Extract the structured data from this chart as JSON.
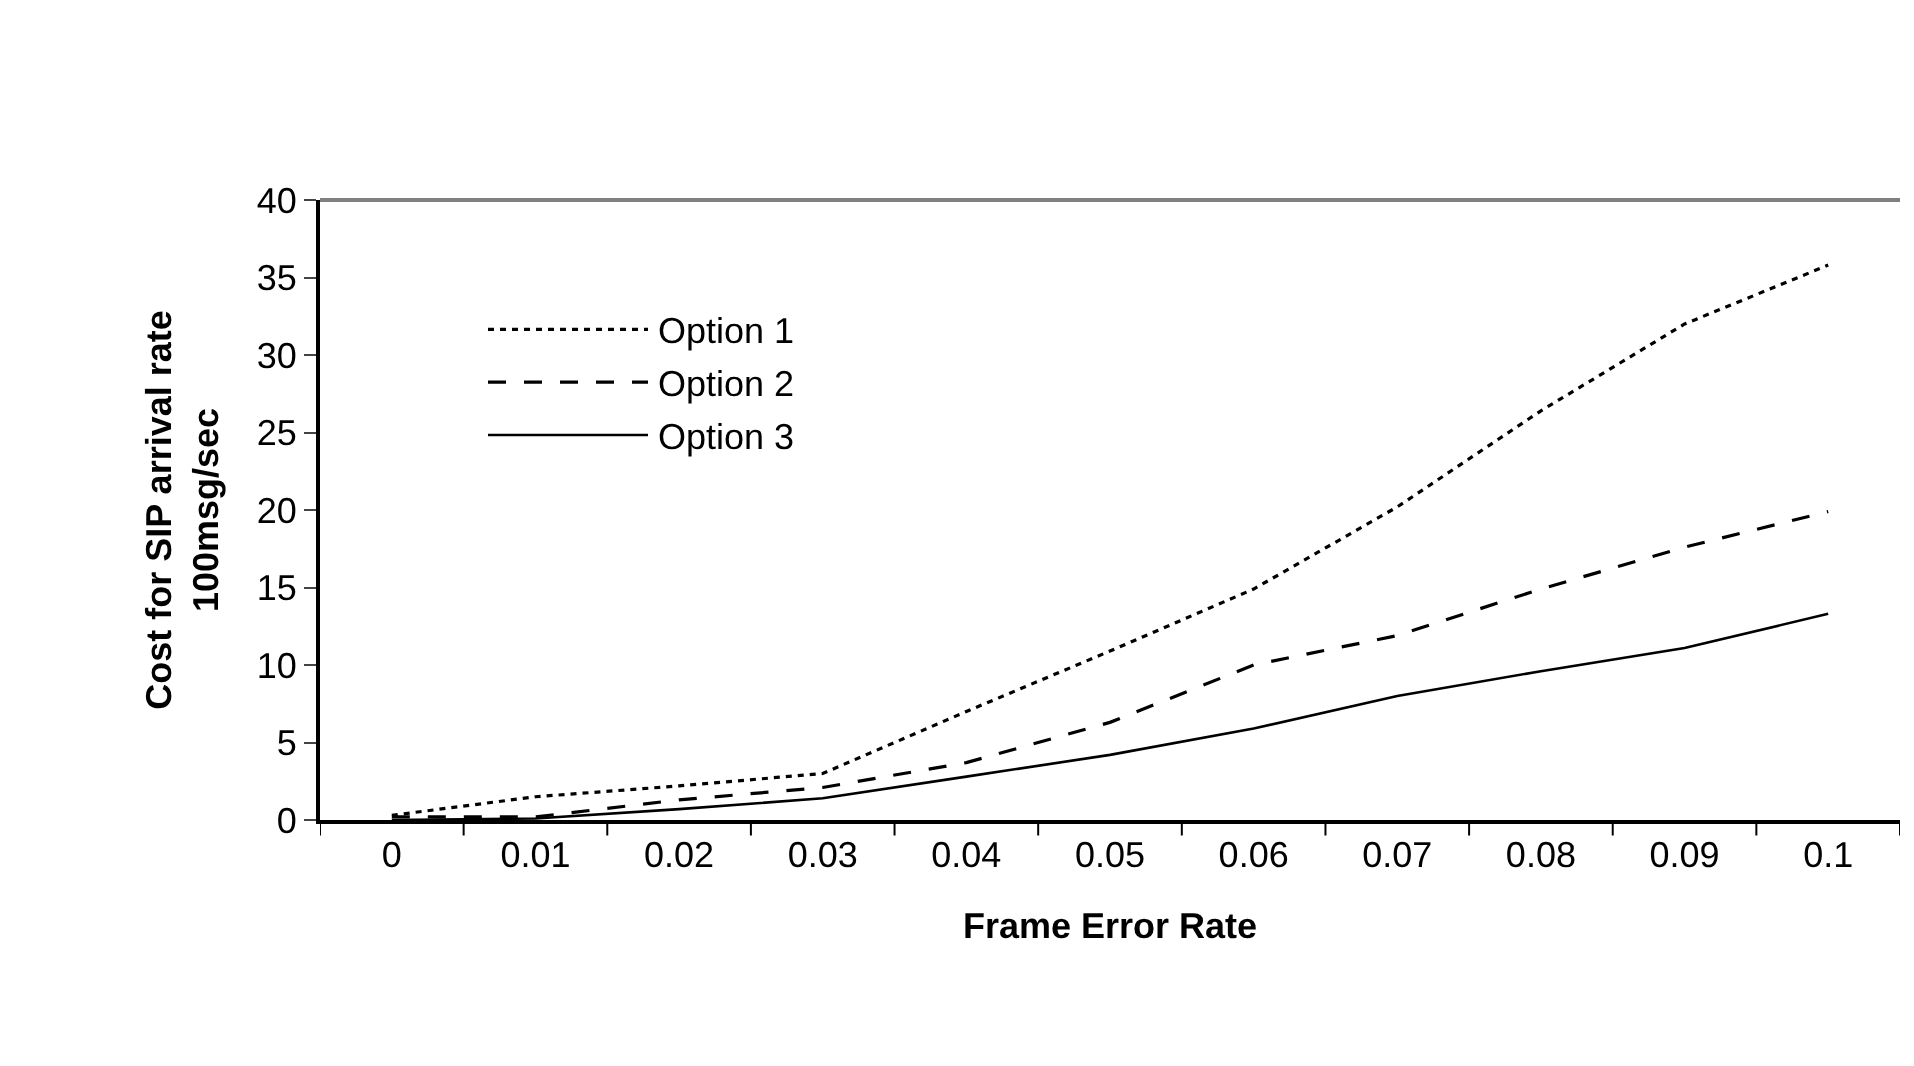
{
  "chart_data": {
    "type": "line",
    "xlabel": "Frame Error Rate",
    "ylabel": "Cost for SIP arrival rate\n100msg/sec",
    "categories": [
      "0",
      "0.01",
      "0.02",
      "0.03",
      "0.04",
      "0.05",
      "0.06",
      "0.07",
      "0.08",
      "0.09",
      "0.1"
    ],
    "ylim": [
      0,
      40
    ],
    "yticks": [
      0,
      5,
      10,
      15,
      20,
      25,
      30,
      35,
      40
    ],
    "legend": "top left",
    "marker": "none",
    "series": [
      {
        "name": "Option 1",
        "color": "#000000",
        "line_style": "dotted",
        "values": [
          0.3,
          1.5,
          2.2,
          3.0,
          7.0,
          10.9,
          14.9,
          20.2,
          26.4,
          32.0,
          35.8
        ]
      },
      {
        "name": "Option 2",
        "color": "#000000",
        "line_style": "dashed",
        "values": [
          0.2,
          0.2,
          1.3,
          2.1,
          3.7,
          6.3,
          10.0,
          11.9,
          14.9,
          17.6,
          19.9
        ]
      },
      {
        "name": "Option 3",
        "color": "#000000",
        "line_style": "solid",
        "values": [
          0.0,
          0.1,
          0.7,
          1.4,
          2.8,
          4.2,
          5.9,
          8.0,
          9.6,
          11.1,
          13.3
        ]
      }
    ]
  }
}
